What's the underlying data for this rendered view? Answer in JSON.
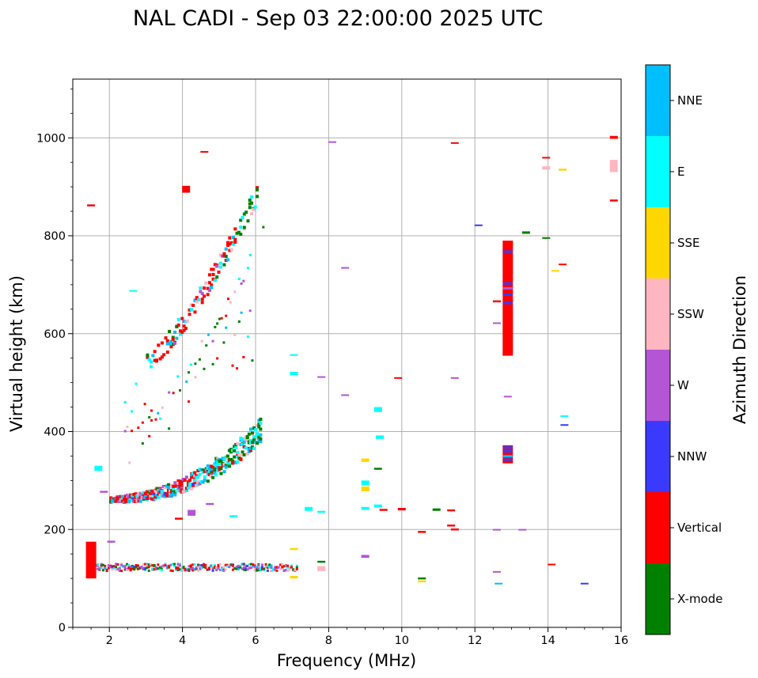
{
  "chart_data": {
    "type": "scatter",
    "title": "NAL CADI - Sep 03 22:00:00 2025 UTC",
    "xlabel": "Frequency (MHz)",
    "ylabel": "Virtual height (km)",
    "xlim": [
      1,
      16
    ],
    "ylim": [
      0,
      1120
    ],
    "xticks": [
      2,
      4,
      6,
      8,
      10,
      12,
      14,
      16
    ],
    "yticks": [
      0,
      200,
      400,
      600,
      800,
      1000
    ],
    "grid": true,
    "colorbar": {
      "label": "Azimuth Direction",
      "categories": [
        {
          "name": "X-mode",
          "color": "#008000"
        },
        {
          "name": "Vertical",
          "color": "#ff0000"
        },
        {
          "name": "NNW",
          "color": "#3a3aff"
        },
        {
          "name": "W",
          "color": "#b455d6"
        },
        {
          "name": "SSW",
          "color": "#ffb6c1"
        },
        {
          "name": "SSE",
          "color": "#ffd700"
        },
        {
          "name": "E",
          "color": "#00ffff"
        },
        {
          "name": "NNE",
          "color": "#00bfff"
        }
      ]
    },
    "traces": [
      {
        "name": "E-layer echoes",
        "x0": 1.5,
        "x1": 7.1,
        "h0": 120,
        "h1": 120
      },
      {
        "name": "F-layer trace",
        "x0": 2.0,
        "x1": 6.1,
        "h0": 255,
        "h1": 380
      },
      {
        "name": "F-layer second hop",
        "x0": 2.4,
        "x1": 6.2,
        "h0": 400,
        "h1": 810
      },
      {
        "name": "Upper multi-hop",
        "x0": 3.0,
        "x1": 6.0,
        "h0": 540,
        "h1": 880
      }
    ],
    "points": [
      {
        "x": 12.9,
        "h0": 555,
        "h1": 790,
        "dir": "Vertical"
      },
      {
        "x": 12.9,
        "h0": 335,
        "h1": 372,
        "dir": "Vertical"
      },
      {
        "x": 4.1,
        "h0": 888,
        "h1": 902,
        "dir": "Vertical"
      },
      {
        "x": 15.8,
        "h0": 998,
        "h1": 1004,
        "dir": "Vertical"
      },
      {
        "x": 15.8,
        "h0": 930,
        "h1": 955,
        "dir": "SSW"
      },
      {
        "x": 15.8,
        "h0": 870,
        "h1": 874,
        "dir": "Vertical"
      },
      {
        "x": 13.95,
        "h0": 935,
        "h1": 942,
        "dir": "SSW"
      },
      {
        "x": 14.4,
        "h0": 933,
        "h1": 937,
        "dir": "SSE"
      },
      {
        "x": 13.95,
        "h0": 958,
        "h1": 961,
        "dir": "Vertical"
      },
      {
        "x": 13.4,
        "h0": 804,
        "h1": 809,
        "dir": "X-mode"
      },
      {
        "x": 13.95,
        "h0": 794,
        "h1": 797,
        "dir": "X-mode"
      },
      {
        "x": 12.1,
        "h0": 820,
        "h1": 823,
        "dir": "NNW"
      },
      {
        "x": 14.4,
        "h0": 740,
        "h1": 743,
        "dir": "Vertical"
      },
      {
        "x": 14.2,
        "h0": 727,
        "h1": 730,
        "dir": "SSE"
      },
      {
        "x": 12.6,
        "h0": 664,
        "h1": 668,
        "dir": "Vertical"
      },
      {
        "x": 12.6,
        "h0": 620,
        "h1": 623,
        "dir": "W"
      },
      {
        "x": 12.9,
        "h0": 470,
        "h1": 473,
        "dir": "W"
      },
      {
        "x": 14.45,
        "h0": 430,
        "h1": 433,
        "dir": "E"
      },
      {
        "x": 14.45,
        "h0": 412,
        "h1": 415,
        "dir": "NNW"
      },
      {
        "x": 12.6,
        "h0": 198,
        "h1": 201,
        "dir": "W"
      },
      {
        "x": 13.3,
        "h0": 198,
        "h1": 201,
        "dir": "W"
      },
      {
        "x": 12.6,
        "h0": 112,
        "h1": 115,
        "dir": "W"
      },
      {
        "x": 12.65,
        "h0": 88,
        "h1": 91,
        "dir": "NNE"
      },
      {
        "x": 14.1,
        "h0": 127,
        "h1": 130,
        "dir": "Vertical"
      },
      {
        "x": 15.0,
        "h0": 88,
        "h1": 91,
        "dir": "NNW"
      },
      {
        "x": 11.45,
        "h0": 988,
        "h1": 991,
        "dir": "Vertical"
      },
      {
        "x": 8.1,
        "h0": 990,
        "h1": 993,
        "dir": "W"
      },
      {
        "x": 4.6,
        "h0": 970,
        "h1": 973,
        "dir": "Vertical"
      },
      {
        "x": 1.5,
        "h0": 860,
        "h1": 864,
        "dir": "Vertical"
      },
      {
        "x": 8.45,
        "h0": 733,
        "h1": 736,
        "dir": "W"
      },
      {
        "x": 11.45,
        "h0": 508,
        "h1": 511,
        "dir": "W"
      },
      {
        "x": 7.8,
        "h0": 510,
        "h1": 513,
        "dir": "W"
      },
      {
        "x": 9.9,
        "h0": 508,
        "h1": 511,
        "dir": "Vertical"
      },
      {
        "x": 8.45,
        "h0": 473,
        "h1": 476,
        "dir": "W"
      },
      {
        "x": 9.35,
        "h0": 440,
        "h1": 450,
        "dir": "E"
      },
      {
        "x": 9.4,
        "h0": 385,
        "h1": 392,
        "dir": "E"
      },
      {
        "x": 9.0,
        "h0": 338,
        "h1": 345,
        "dir": "SSE"
      },
      {
        "x": 9.35,
        "h0": 322,
        "h1": 326,
        "dir": "X-mode"
      },
      {
        "x": 9.0,
        "h0": 290,
        "h1": 300,
        "dir": "E"
      },
      {
        "x": 9.0,
        "h0": 278,
        "h1": 288,
        "dir": "SSE"
      },
      {
        "x": 9.0,
        "h0": 240,
        "h1": 246,
        "dir": "E"
      },
      {
        "x": 9.35,
        "h0": 245,
        "h1": 251,
        "dir": "E"
      },
      {
        "x": 9.5,
        "h0": 238,
        "h1": 242,
        "dir": "Vertical"
      },
      {
        "x": 10.0,
        "h0": 239,
        "h1": 244,
        "dir": "Vertical"
      },
      {
        "x": 10.95,
        "h0": 238,
        "h1": 243,
        "dir": "X-mode"
      },
      {
        "x": 11.35,
        "h0": 237,
        "h1": 241,
        "dir": "Vertical"
      },
      {
        "x": 10.55,
        "h0": 193,
        "h1": 197,
        "dir": "Vertical"
      },
      {
        "x": 11.35,
        "h0": 206,
        "h1": 210,
        "dir": "Vertical"
      },
      {
        "x": 11.45,
        "h0": 198,
        "h1": 202,
        "dir": "Vertical"
      },
      {
        "x": 9.0,
        "h0": 142,
        "h1": 148,
        "dir": "W"
      },
      {
        "x": 10.55,
        "h0": 98,
        "h1": 102,
        "dir": "X-mode"
      },
      {
        "x": 10.55,
        "h0": 92,
        "h1": 96,
        "dir": "SSE"
      },
      {
        "x": 7.45,
        "h0": 238,
        "h1": 246,
        "dir": "E"
      },
      {
        "x": 7.8,
        "h0": 234,
        "h1": 238,
        "dir": "E"
      },
      {
        "x": 7.8,
        "h0": 132,
        "h1": 136,
        "dir": "X-mode"
      },
      {
        "x": 7.8,
        "h0": 115,
        "h1": 125,
        "dir": "SSW"
      },
      {
        "x": 7.05,
        "h0": 158,
        "h1": 162,
        "dir": "SSE"
      },
      {
        "x": 7.05,
        "h0": 100,
        "h1": 105,
        "dir": "SSE"
      },
      {
        "x": 7.05,
        "h0": 555,
        "h1": 558,
        "dir": "E"
      },
      {
        "x": 7.05,
        "h0": 515,
        "h1": 522,
        "dir": "E"
      },
      {
        "x": 1.5,
        "h0": 100,
        "h1": 175,
        "dir": "Vertical"
      },
      {
        "x": 1.7,
        "h0": 320,
        "h1": 330,
        "dir": "E"
      },
      {
        "x": 1.85,
        "h0": 275,
        "h1": 279,
        "dir": "W"
      },
      {
        "x": 2.05,
        "h0": 173,
        "h1": 177,
        "dir": "W"
      },
      {
        "x": 2.65,
        "h0": 686,
        "h1": 689,
        "dir": "E"
      },
      {
        "x": 3.9,
        "h0": 220,
        "h1": 224,
        "dir": "Vertical"
      },
      {
        "x": 4.25,
        "h0": 228,
        "h1": 240,
        "dir": "W"
      },
      {
        "x": 4.75,
        "h0": 250,
        "h1": 254,
        "dir": "W"
      },
      {
        "x": 5.4,
        "h0": 225,
        "h1": 229,
        "dir": "E"
      }
    ]
  }
}
